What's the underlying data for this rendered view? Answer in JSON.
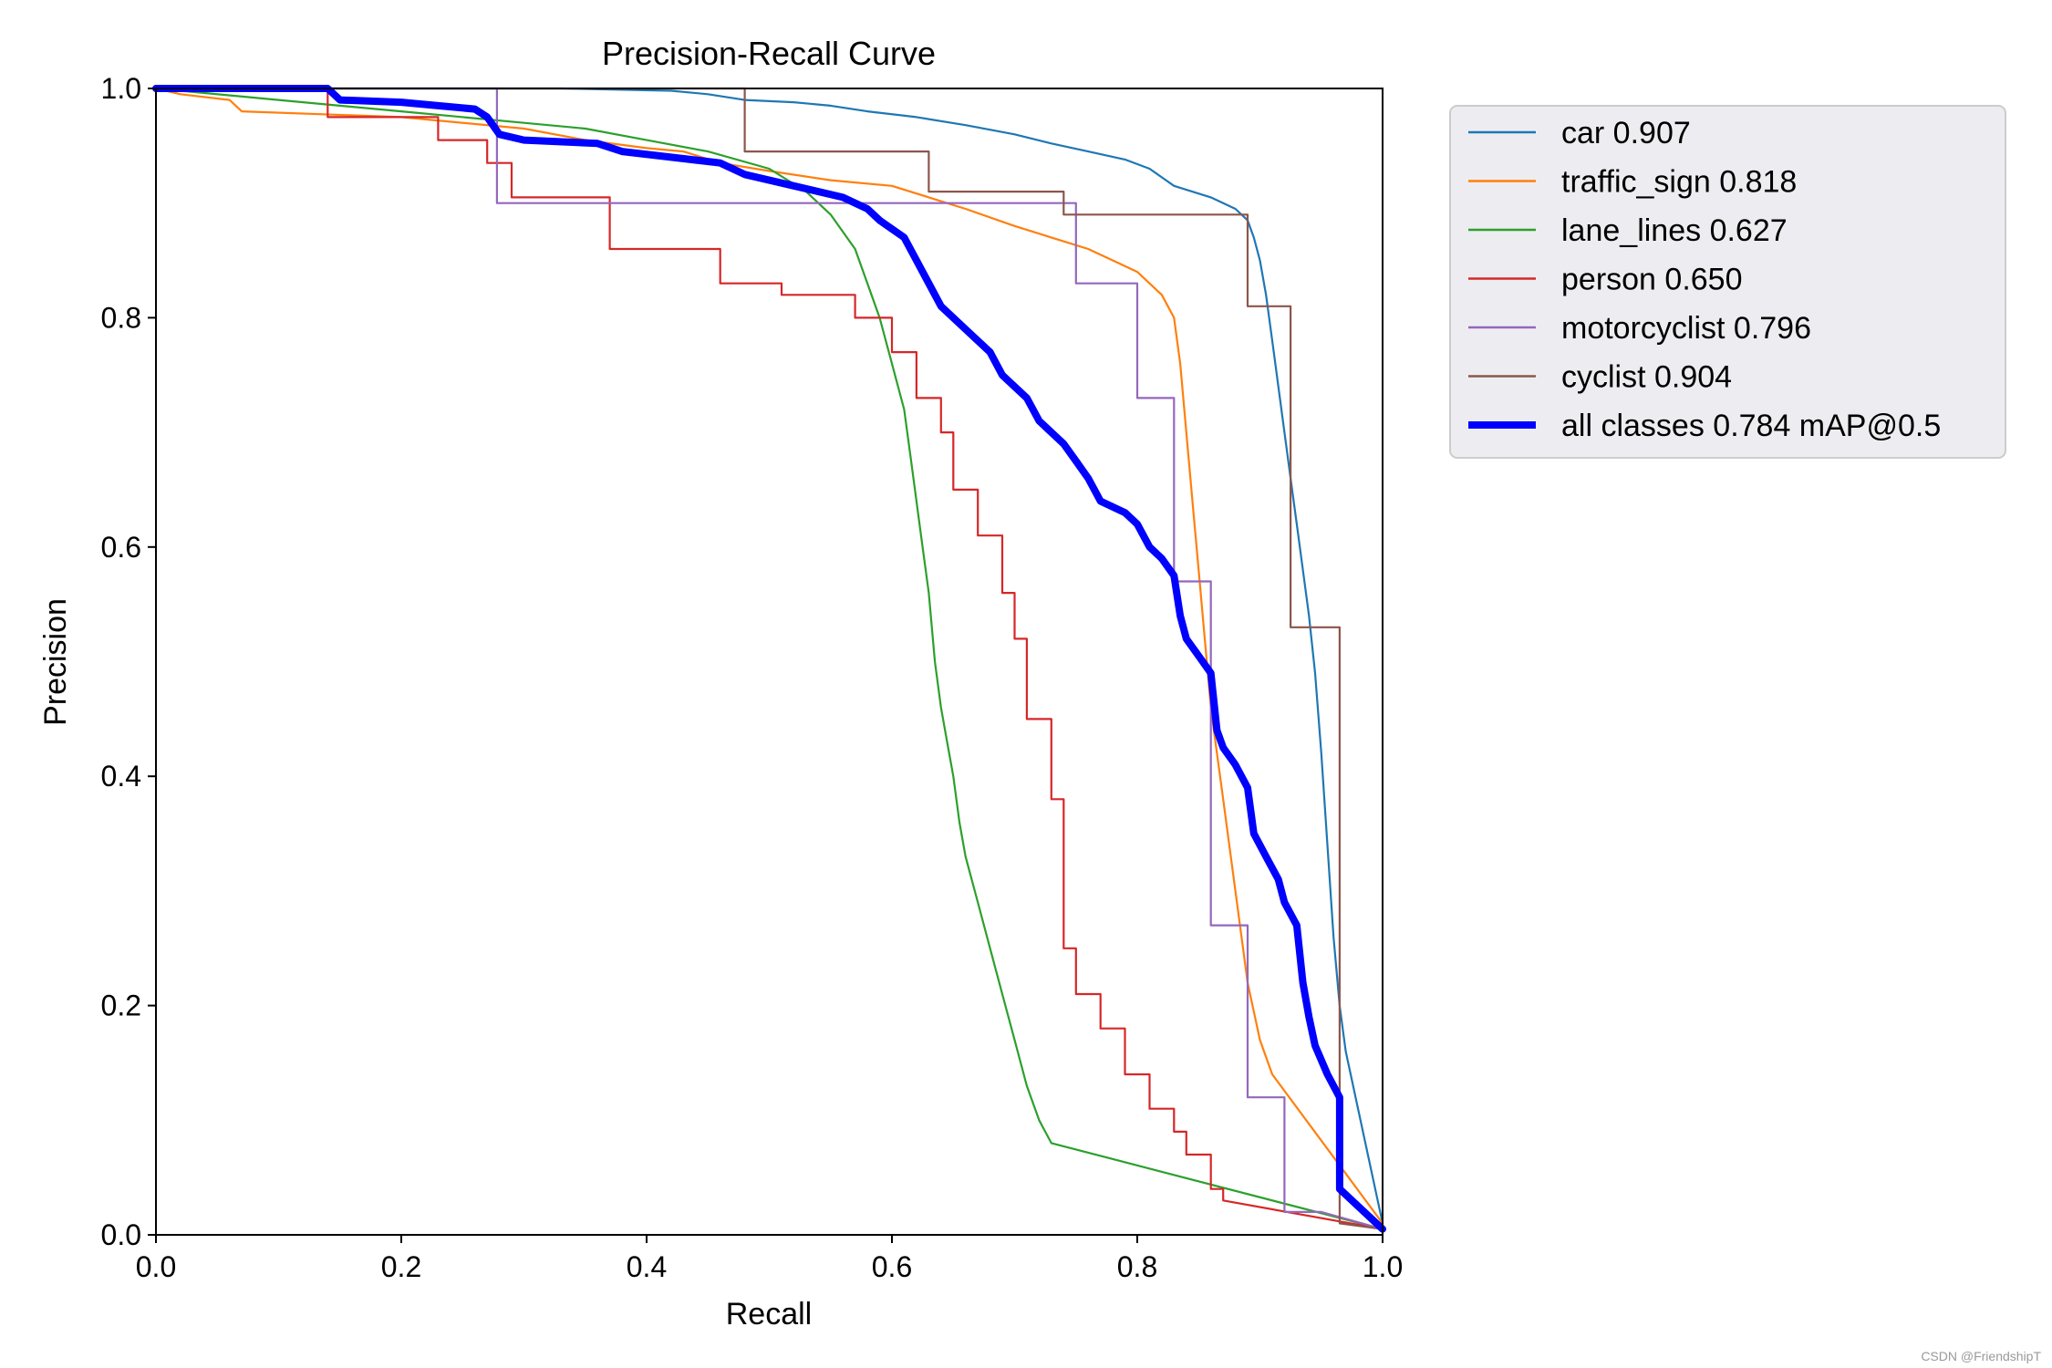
{
  "watermark": "CSDN @FriendshipT",
  "chart_data": {
    "type": "line",
    "title": "Precision-Recall Curve",
    "xlabel": "Recall",
    "ylabel": "Precision",
    "xlim": [
      0,
      1
    ],
    "ylim": [
      0,
      1
    ],
    "xticks": [
      "0.0",
      "0.2",
      "0.4",
      "0.6",
      "0.8",
      "1.0"
    ],
    "yticks": [
      "0.0",
      "0.2",
      "0.4",
      "0.6",
      "0.8",
      "1.0"
    ],
    "grid": false,
    "legend_position": "outside-top-right",
    "series": [
      {
        "name": "car 0.907",
        "color": "#1f77b4",
        "points": [
          [
            0,
            1
          ],
          [
            0.33,
            1
          ],
          [
            0.42,
            0.998
          ],
          [
            0.45,
            0.995
          ],
          [
            0.48,
            0.99
          ],
          [
            0.52,
            0.988
          ],
          [
            0.55,
            0.985
          ],
          [
            0.58,
            0.98
          ],
          [
            0.62,
            0.975
          ],
          [
            0.66,
            0.968
          ],
          [
            0.7,
            0.96
          ],
          [
            0.73,
            0.952
          ],
          [
            0.76,
            0.945
          ],
          [
            0.79,
            0.938
          ],
          [
            0.81,
            0.93
          ],
          [
            0.83,
            0.915
          ],
          [
            0.86,
            0.905
          ],
          [
            0.88,
            0.895
          ],
          [
            0.89,
            0.885
          ],
          [
            0.895,
            0.87
          ],
          [
            0.9,
            0.85
          ],
          [
            0.905,
            0.82
          ],
          [
            0.91,
            0.78
          ],
          [
            0.915,
            0.74
          ],
          [
            0.92,
            0.7
          ],
          [
            0.925,
            0.66
          ],
          [
            0.93,
            0.62
          ],
          [
            0.935,
            0.58
          ],
          [
            0.94,
            0.54
          ],
          [
            0.945,
            0.49
          ],
          [
            0.95,
            0.42
          ],
          [
            0.955,
            0.34
          ],
          [
            0.96,
            0.26
          ],
          [
            0.965,
            0.2
          ],
          [
            0.97,
            0.16
          ],
          [
            1.0,
            0.01
          ]
        ]
      },
      {
        "name": "traffic_sign 0.818",
        "color": "#ff7f0e",
        "points": [
          [
            0,
            1
          ],
          [
            0.02,
            0.995
          ],
          [
            0.06,
            0.99
          ],
          [
            0.07,
            0.98
          ],
          [
            0.2,
            0.975
          ],
          [
            0.3,
            0.965
          ],
          [
            0.35,
            0.955
          ],
          [
            0.4,
            0.948
          ],
          [
            0.43,
            0.945
          ],
          [
            0.46,
            0.935
          ],
          [
            0.5,
            0.928
          ],
          [
            0.55,
            0.92
          ],
          [
            0.6,
            0.915
          ],
          [
            0.63,
            0.905
          ],
          [
            0.66,
            0.895
          ],
          [
            0.7,
            0.88
          ],
          [
            0.73,
            0.87
          ],
          [
            0.76,
            0.86
          ],
          [
            0.78,
            0.85
          ],
          [
            0.8,
            0.84
          ],
          [
            0.82,
            0.82
          ],
          [
            0.83,
            0.8
          ],
          [
            0.835,
            0.76
          ],
          [
            0.84,
            0.7
          ],
          [
            0.845,
            0.64
          ],
          [
            0.85,
            0.58
          ],
          [
            0.855,
            0.52
          ],
          [
            0.86,
            0.46
          ],
          [
            0.865,
            0.42
          ],
          [
            0.87,
            0.38
          ],
          [
            0.875,
            0.34
          ],
          [
            0.88,
            0.3
          ],
          [
            0.885,
            0.26
          ],
          [
            0.89,
            0.22
          ],
          [
            0.9,
            0.17
          ],
          [
            0.91,
            0.14
          ],
          [
            1.0,
            0.01
          ]
        ]
      },
      {
        "name": "lane_lines 0.627",
        "color": "#2ca02c",
        "points": [
          [
            0,
            1
          ],
          [
            0.1,
            0.99
          ],
          [
            0.2,
            0.98
          ],
          [
            0.3,
            0.97
          ],
          [
            0.35,
            0.965
          ],
          [
            0.4,
            0.955
          ],
          [
            0.45,
            0.945
          ],
          [
            0.5,
            0.93
          ],
          [
            0.53,
            0.91
          ],
          [
            0.55,
            0.89
          ],
          [
            0.57,
            0.86
          ],
          [
            0.58,
            0.83
          ],
          [
            0.59,
            0.8
          ],
          [
            0.6,
            0.76
          ],
          [
            0.61,
            0.72
          ],
          [
            0.615,
            0.68
          ],
          [
            0.62,
            0.64
          ],
          [
            0.625,
            0.6
          ],
          [
            0.63,
            0.56
          ],
          [
            0.635,
            0.5
          ],
          [
            0.64,
            0.46
          ],
          [
            0.645,
            0.43
          ],
          [
            0.65,
            0.4
          ],
          [
            0.655,
            0.36
          ],
          [
            0.66,
            0.33
          ],
          [
            0.67,
            0.29
          ],
          [
            0.68,
            0.25
          ],
          [
            0.69,
            0.21
          ],
          [
            0.7,
            0.17
          ],
          [
            0.71,
            0.13
          ],
          [
            0.72,
            0.1
          ],
          [
            0.73,
            0.08
          ],
          [
            1.0,
            0.005
          ]
        ]
      },
      {
        "name": "person 0.650",
        "color": "#d62728",
        "points": [
          [
            0,
            1
          ],
          [
            0.14,
            1
          ],
          [
            0.14,
            0.975
          ],
          [
            0.23,
            0.975
          ],
          [
            0.23,
            0.955
          ],
          [
            0.27,
            0.955
          ],
          [
            0.27,
            0.935
          ],
          [
            0.29,
            0.935
          ],
          [
            0.29,
            0.905
          ],
          [
            0.37,
            0.905
          ],
          [
            0.37,
            0.86
          ],
          [
            0.39,
            0.86
          ],
          [
            0.39,
            0.86
          ],
          [
            0.46,
            0.86
          ],
          [
            0.46,
            0.83
          ],
          [
            0.51,
            0.83
          ],
          [
            0.51,
            0.82
          ],
          [
            0.57,
            0.82
          ],
          [
            0.57,
            0.8
          ],
          [
            0.6,
            0.8
          ],
          [
            0.6,
            0.77
          ],
          [
            0.62,
            0.77
          ],
          [
            0.62,
            0.73
          ],
          [
            0.64,
            0.73
          ],
          [
            0.64,
            0.7
          ],
          [
            0.65,
            0.7
          ],
          [
            0.65,
            0.65
          ],
          [
            0.67,
            0.65
          ],
          [
            0.67,
            0.61
          ],
          [
            0.69,
            0.61
          ],
          [
            0.69,
            0.56
          ],
          [
            0.7,
            0.56
          ],
          [
            0.7,
            0.52
          ],
          [
            0.71,
            0.52
          ],
          [
            0.71,
            0.45
          ],
          [
            0.73,
            0.45
          ],
          [
            0.73,
            0.38
          ],
          [
            0.74,
            0.38
          ],
          [
            0.74,
            0.25
          ],
          [
            0.75,
            0.25
          ],
          [
            0.75,
            0.21
          ],
          [
            0.77,
            0.21
          ],
          [
            0.77,
            0.18
          ],
          [
            0.79,
            0.18
          ],
          [
            0.79,
            0.14
          ],
          [
            0.81,
            0.14
          ],
          [
            0.81,
            0.11
          ],
          [
            0.83,
            0.11
          ],
          [
            0.83,
            0.09
          ],
          [
            0.84,
            0.09
          ],
          [
            0.84,
            0.07
          ],
          [
            0.86,
            0.07
          ],
          [
            0.86,
            0.04
          ],
          [
            0.87,
            0.04
          ],
          [
            0.87,
            0.03
          ],
          [
            1.0,
            0.005
          ]
        ]
      },
      {
        "name": "motorcyclist 0.796",
        "color": "#9467bd",
        "points": [
          [
            0,
            1
          ],
          [
            0.278,
            1
          ],
          [
            0.278,
            0.9
          ],
          [
            0.75,
            0.9
          ],
          [
            0.75,
            0.83
          ],
          [
            0.8,
            0.83
          ],
          [
            0.8,
            0.73
          ],
          [
            0.83,
            0.73
          ],
          [
            0.83,
            0.57
          ],
          [
            0.86,
            0.57
          ],
          [
            0.86,
            0.27
          ],
          [
            0.89,
            0.27
          ],
          [
            0.89,
            0.12
          ],
          [
            0.92,
            0.12
          ],
          [
            0.92,
            0.02
          ],
          [
            0.95,
            0.02
          ],
          [
            1.0,
            0.005
          ]
        ]
      },
      {
        "name": "cyclist 0.904",
        "color": "#8c564b",
        "points": [
          [
            0,
            1
          ],
          [
            0.48,
            1
          ],
          [
            0.48,
            0.945
          ],
          [
            0.63,
            0.945
          ],
          [
            0.63,
            0.91
          ],
          [
            0.74,
            0.91
          ],
          [
            0.74,
            0.89
          ],
          [
            0.89,
            0.89
          ],
          [
            0.89,
            0.81
          ],
          [
            0.925,
            0.81
          ],
          [
            0.925,
            0.53
          ],
          [
            0.965,
            0.53
          ],
          [
            0.965,
            0.01
          ],
          [
            1.0,
            0.005
          ]
        ]
      },
      {
        "name": "all classes 0.784 mAP@0.5",
        "color": "#0000ff",
        "bold": true,
        "points": [
          [
            0,
            1
          ],
          [
            0.14,
            1
          ],
          [
            0.15,
            0.99
          ],
          [
            0.2,
            0.988
          ],
          [
            0.23,
            0.985
          ],
          [
            0.26,
            0.982
          ],
          [
            0.27,
            0.975
          ],
          [
            0.28,
            0.96
          ],
          [
            0.3,
            0.955
          ],
          [
            0.36,
            0.952
          ],
          [
            0.38,
            0.945
          ],
          [
            0.42,
            0.94
          ],
          [
            0.46,
            0.935
          ],
          [
            0.48,
            0.925
          ],
          [
            0.52,
            0.915
          ],
          [
            0.56,
            0.905
          ],
          [
            0.58,
            0.895
          ],
          [
            0.59,
            0.885
          ],
          [
            0.61,
            0.87
          ],
          [
            0.62,
            0.85
          ],
          [
            0.63,
            0.83
          ],
          [
            0.64,
            0.81
          ],
          [
            0.66,
            0.79
          ],
          [
            0.68,
            0.77
          ],
          [
            0.69,
            0.75
          ],
          [
            0.71,
            0.73
          ],
          [
            0.72,
            0.71
          ],
          [
            0.74,
            0.69
          ],
          [
            0.75,
            0.675
          ],
          [
            0.76,
            0.66
          ],
          [
            0.77,
            0.64
          ],
          [
            0.79,
            0.63
          ],
          [
            0.8,
            0.62
          ],
          [
            0.81,
            0.6
          ],
          [
            0.82,
            0.59
          ],
          [
            0.83,
            0.575
          ],
          [
            0.835,
            0.54
          ],
          [
            0.84,
            0.52
          ],
          [
            0.85,
            0.505
          ],
          [
            0.86,
            0.49
          ],
          [
            0.865,
            0.44
          ],
          [
            0.87,
            0.425
          ],
          [
            0.88,
            0.41
          ],
          [
            0.89,
            0.39
          ],
          [
            0.895,
            0.35
          ],
          [
            0.905,
            0.33
          ],
          [
            0.915,
            0.31
          ],
          [
            0.92,
            0.29
          ],
          [
            0.93,
            0.27
          ],
          [
            0.935,
            0.22
          ],
          [
            0.94,
            0.19
          ],
          [
            0.945,
            0.165
          ],
          [
            0.955,
            0.14
          ],
          [
            0.96,
            0.13
          ],
          [
            0.965,
            0.12
          ],
          [
            0.965,
            0.04
          ],
          [
            0.98,
            0.025
          ],
          [
            1.0,
            0.005
          ]
        ]
      }
    ]
  }
}
